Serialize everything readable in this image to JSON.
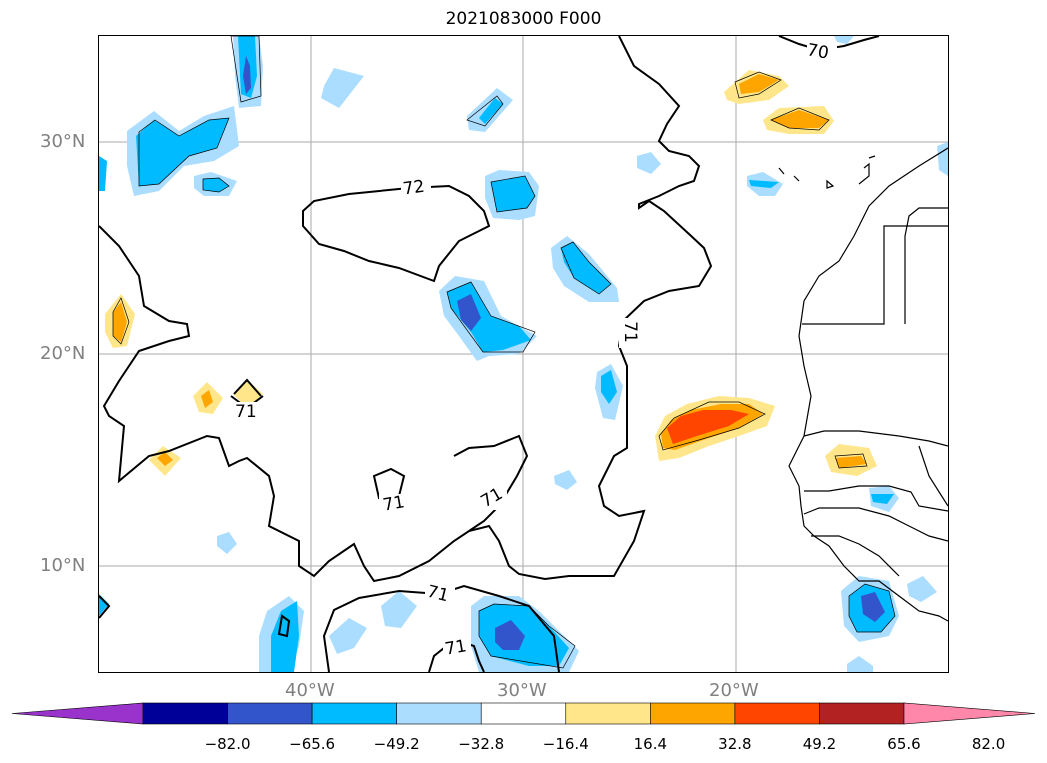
{
  "title": "2021083000 F000",
  "lat_labels": [
    "30°N",
    "20°N",
    "10°N"
  ],
  "lon_labels": [
    "40°W",
    "30°W",
    "20°W"
  ],
  "contour_labels": [
    "70",
    "72",
    "71",
    "71",
    "71",
    "71",
    "71",
    "71"
  ],
  "colorbar": {
    "colors": [
      "#9933cc",
      "#000099",
      "#3355cc",
      "#00bbff",
      "#aaddff",
      "#ffffff",
      "#ffe68a",
      "#ffa500",
      "#ff4500",
      "#b22222",
      "#ff88aa"
    ],
    "ticks": [
      "−82.0",
      "−65.6",
      "−49.2",
      "−32.8",
      "−16.4",
      "16.4",
      "32.8",
      "49.2",
      "65.6",
      "82.0"
    ]
  }
}
